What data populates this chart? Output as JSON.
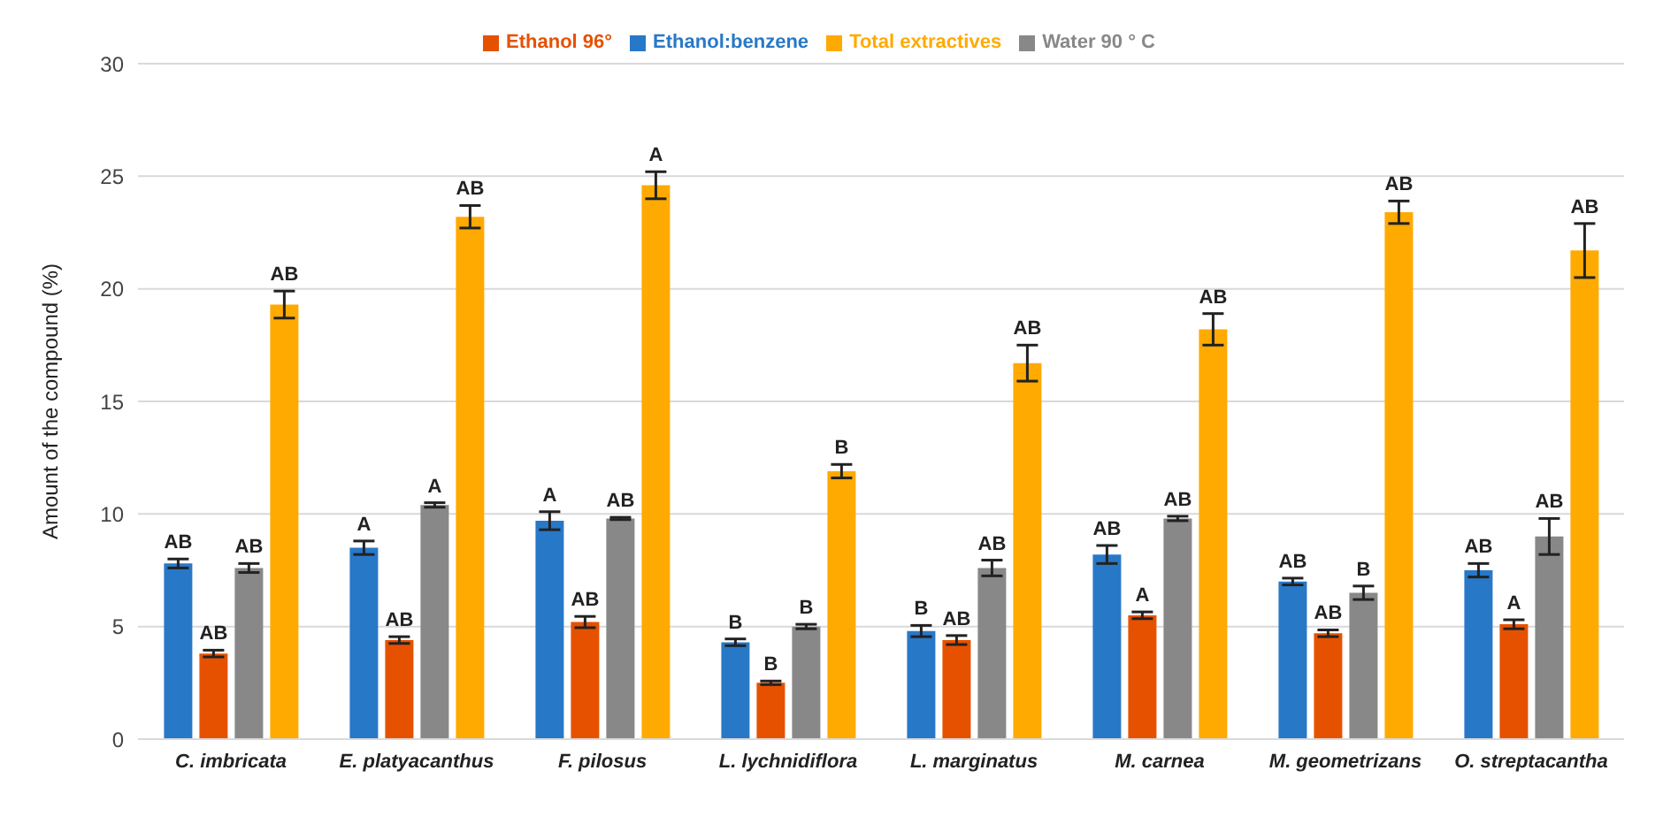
{
  "chart_data": {
    "type": "bar",
    "ylabel": "Amount of the compound (%)",
    "categories": [
      "C. imbricata",
      "E. platyacanthus",
      "F. pilosus",
      "L. lychnidiflora",
      "L. marginatus",
      "M. carnea",
      "M. geometrizans",
      "O. streptacantha"
    ],
    "series": [
      {
        "name": "Ethanol:benzene",
        "color": "#2878c8",
        "values": [
          7.8,
          8.5,
          9.7,
          4.3,
          4.8,
          8.2,
          7.0,
          7.5
        ],
        "errors": [
          0.2,
          0.3,
          0.4,
          0.15,
          0.25,
          0.4,
          0.15,
          0.3
        ],
        "value_labels": [
          "AB",
          "A",
          "A",
          "B",
          "B",
          "AB",
          "AB",
          "AB"
        ]
      },
      {
        "name": "Ethanol 96°",
        "color": "#e65100",
        "values": [
          3.8,
          4.4,
          5.2,
          2.5,
          4.4,
          5.5,
          4.7,
          5.1
        ],
        "errors": [
          0.15,
          0.15,
          0.25,
          0.08,
          0.2,
          0.15,
          0.15,
          0.2
        ],
        "value_labels": [
          "AB",
          "AB",
          "AB",
          "B",
          "AB",
          "A",
          "AB",
          "A"
        ]
      },
      {
        "name": "Water 90 ° C",
        "color": "#888888",
        "values": [
          7.6,
          10.4,
          9.8,
          5.0,
          7.6,
          9.8,
          6.5,
          9.0
        ],
        "errors": [
          0.2,
          0.1,
          0.05,
          0.1,
          0.35,
          0.1,
          0.3,
          0.8
        ],
        "value_labels": [
          "AB",
          "A",
          "AB",
          "B",
          "AB",
          "AB",
          "B",
          "AB"
        ]
      },
      {
        "name": "Total extractives",
        "color": "#ffaa00",
        "values": [
          19.3,
          23.2,
          24.6,
          11.9,
          16.7,
          18.2,
          23.4,
          21.7
        ],
        "errors": [
          0.6,
          0.5,
          0.6,
          0.3,
          0.8,
          0.7,
          0.5,
          1.2
        ],
        "value_labels": [
          "AB",
          "AB",
          "A",
          "B",
          "AB",
          "AB",
          "AB",
          "AB"
        ]
      }
    ],
    "ylim": [
      0,
      30
    ],
    "yticks": [
      0,
      5,
      10,
      15,
      20,
      25,
      30
    ],
    "grid": "y",
    "legend": "top"
  }
}
